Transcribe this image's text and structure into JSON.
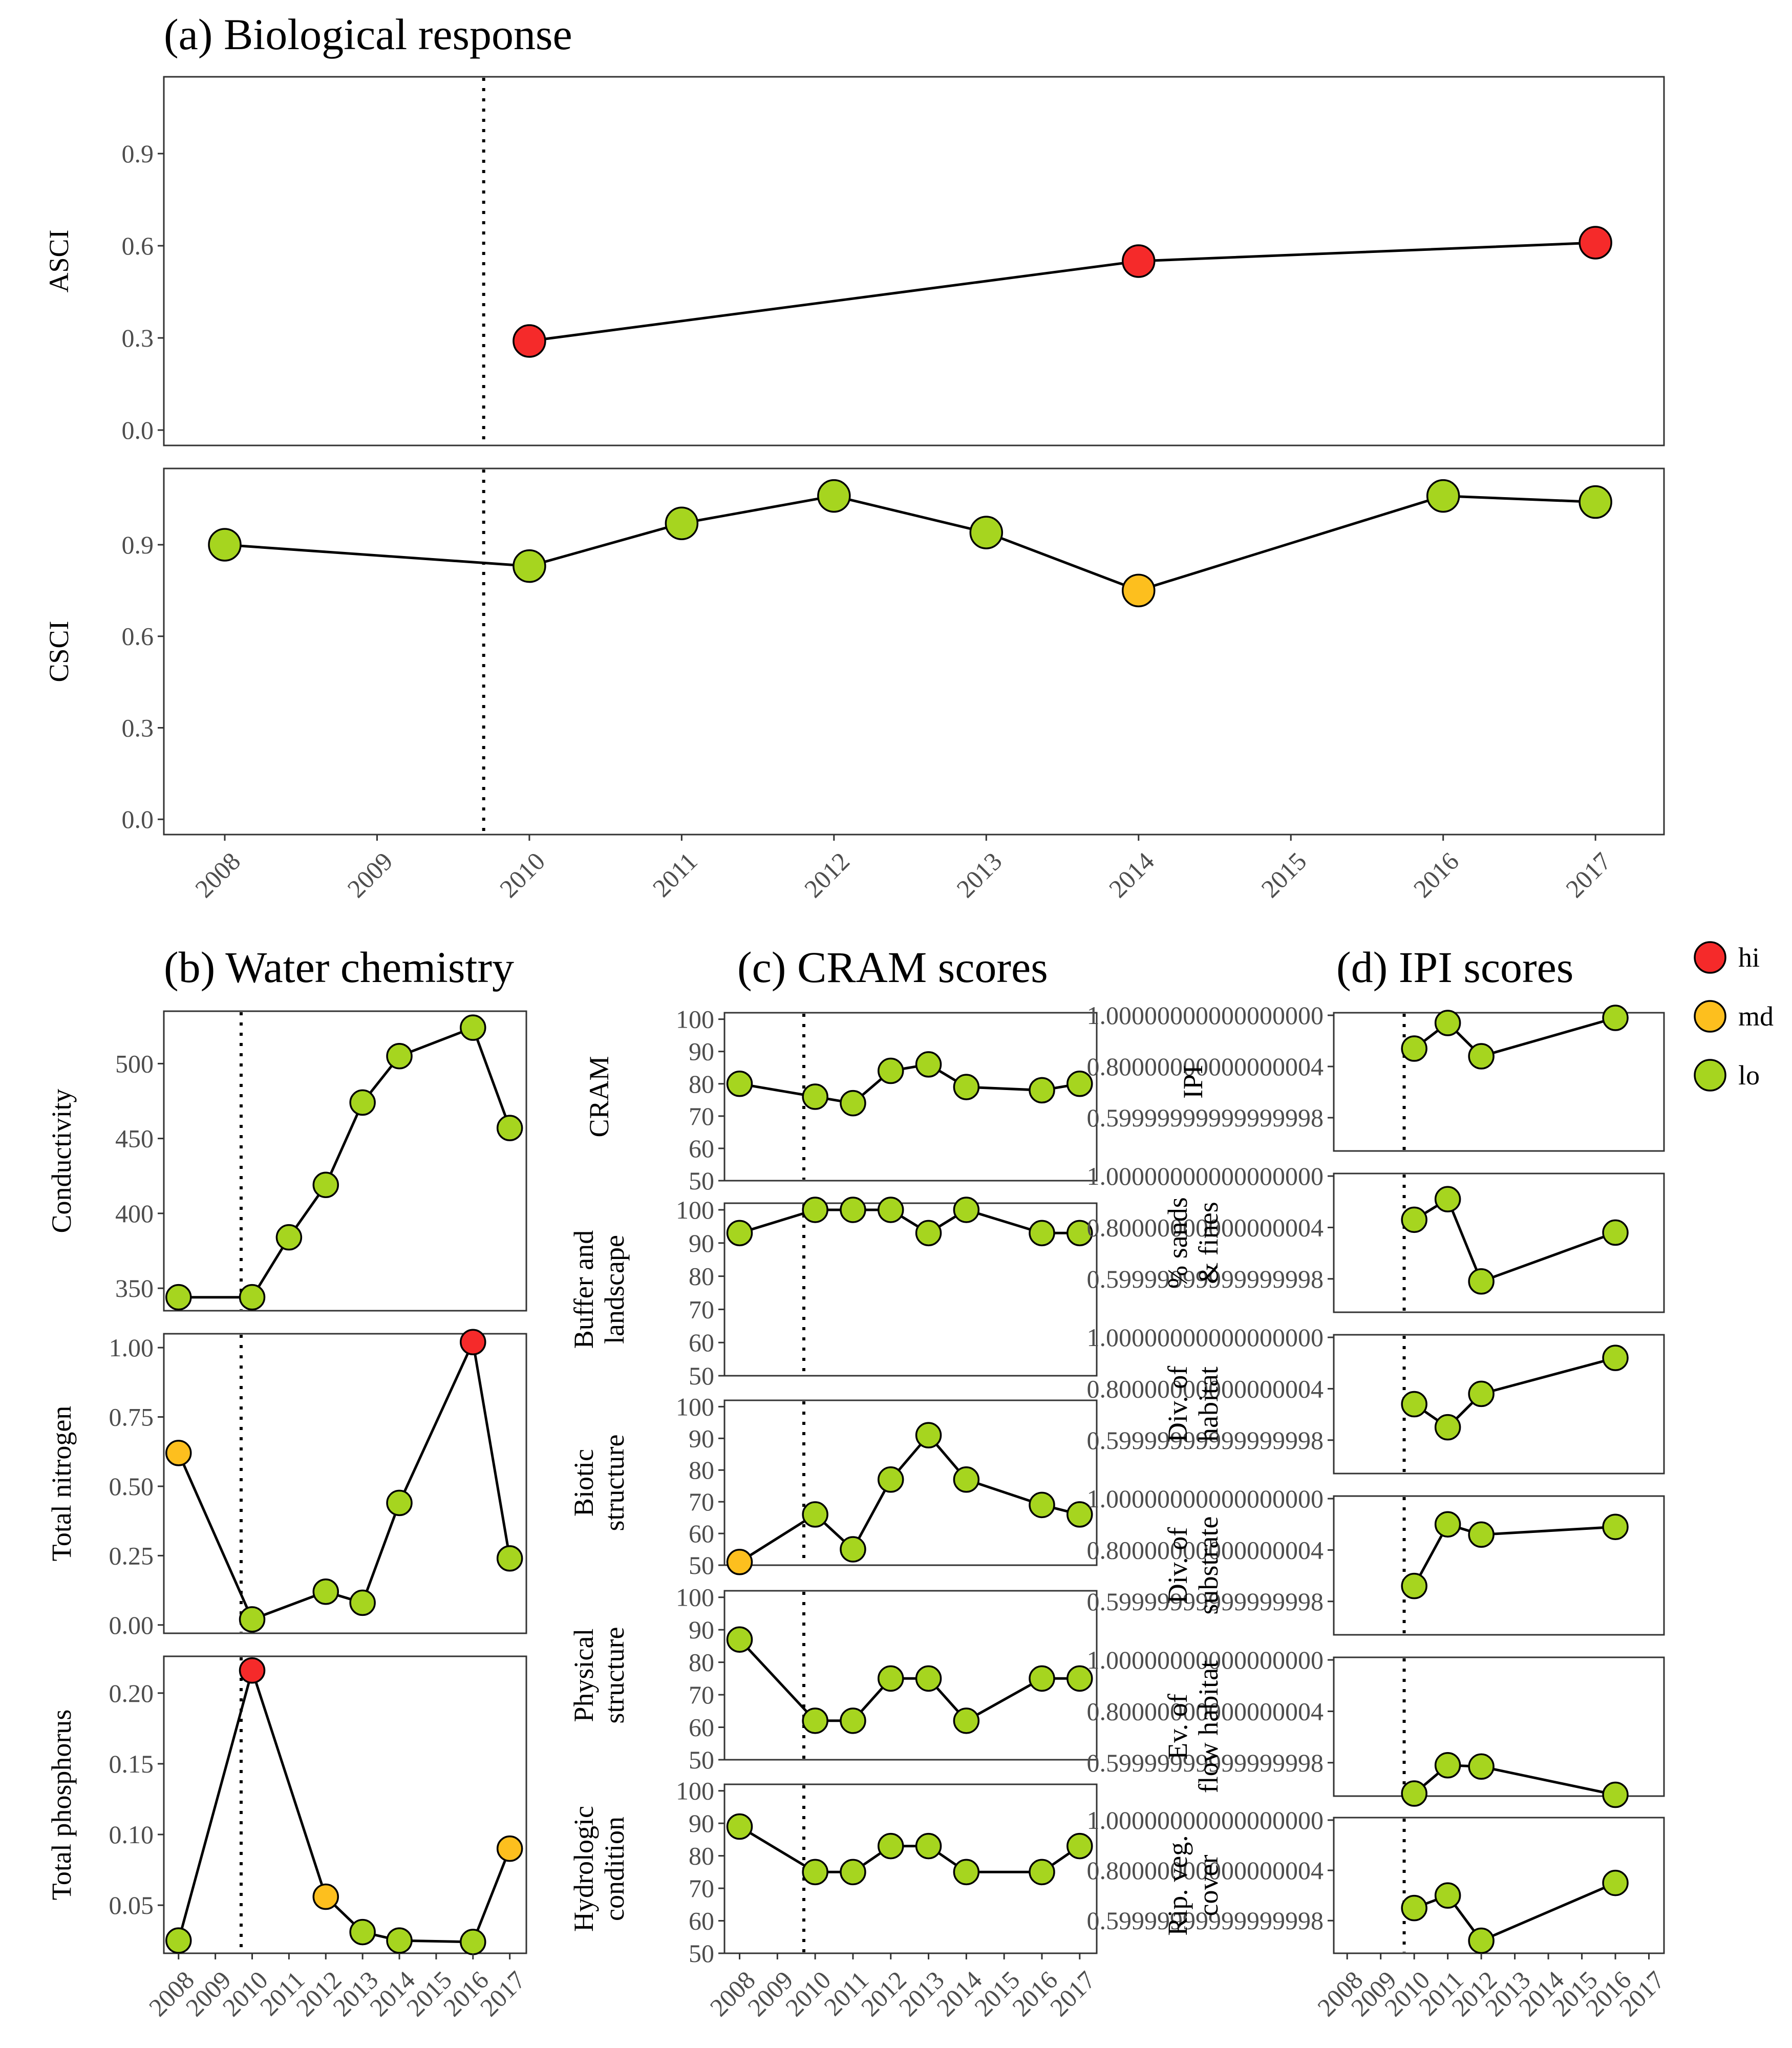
{
  "colors": {
    "hi": "#f52a2a",
    "md": "#fdbf1e",
    "lo": "#a6d51f"
  },
  "legend": [
    {
      "key": "hi",
      "label": "hi"
    },
    {
      "key": "md",
      "label": "md"
    },
    {
      "key": "lo",
      "label": "lo"
    }
  ],
  "chart_data": [
    {
      "type": "line",
      "title": "(a) Biological response",
      "x_ticks": [
        "2008",
        "2009",
        "2010",
        "2011",
        "2012",
        "2013",
        "2014",
        "2015",
        "2016",
        "2017"
      ],
      "xlim": [
        2007.6,
        2017.45
      ],
      "vline_x": 2009.7,
      "panels": [
        {
          "ylabel": "ASCI",
          "ylim": [
            -0.05,
            1.15
          ],
          "yticks": [
            0.0,
            0.3,
            0.6,
            0.9
          ],
          "points": [
            {
              "x": 2010,
              "y": 0.29,
              "cat": "hi"
            },
            {
              "x": 2014,
              "y": 0.55,
              "cat": "hi"
            },
            {
              "x": 2017,
              "y": 0.61,
              "cat": "hi"
            }
          ]
        },
        {
          "ylabel": "CSCI",
          "ylim": [
            -0.05,
            1.15
          ],
          "yticks": [
            0.0,
            0.3,
            0.6,
            0.9
          ],
          "points": [
            {
              "x": 2008,
              "y": 0.9,
              "cat": "lo"
            },
            {
              "x": 2010,
              "y": 0.83,
              "cat": "lo"
            },
            {
              "x": 2011,
              "y": 0.97,
              "cat": "lo"
            },
            {
              "x": 2012,
              "y": 1.06,
              "cat": "lo"
            },
            {
              "x": 2013,
              "y": 0.94,
              "cat": "lo"
            },
            {
              "x": 2014,
              "y": 0.75,
              "cat": "md"
            },
            {
              "x": 2016,
              "y": 1.06,
              "cat": "lo"
            },
            {
              "x": 2017,
              "y": 1.04,
              "cat": "lo"
            }
          ]
        }
      ]
    },
    {
      "type": "line",
      "title": "(b) Water chemistry",
      "x_ticks": [
        "2008",
        "2009",
        "2010",
        "2011",
        "2012",
        "2013",
        "2014",
        "2015",
        "2016",
        "2017"
      ],
      "xlim": [
        2007.6,
        2017.45
      ],
      "vline_x": 2009.7,
      "panels": [
        {
          "ylabel": "Conductivity",
          "ylim": [
            335,
            535
          ],
          "yticks": [
            350,
            400,
            450,
            500
          ],
          "points": [
            {
              "x": 2008,
              "y": 344,
              "cat": "lo"
            },
            {
              "x": 2010,
              "y": 344,
              "cat": "lo"
            },
            {
              "x": 2011,
              "y": 384,
              "cat": "lo"
            },
            {
              "x": 2012,
              "y": 419,
              "cat": "lo"
            },
            {
              "x": 2013,
              "y": 474,
              "cat": "lo"
            },
            {
              "x": 2014,
              "y": 505,
              "cat": "lo"
            },
            {
              "x": 2016,
              "y": 524,
              "cat": "lo"
            },
            {
              "x": 2017,
              "y": 457,
              "cat": "lo"
            }
          ]
        },
        {
          "ylabel": "Total nitrogen",
          "ylim": [
            -0.03,
            1.05
          ],
          "yticks": [
            0.0,
            0.25,
            0.5,
            0.75,
            1.0
          ],
          "points": [
            {
              "x": 2008,
              "y": 0.62,
              "cat": "md"
            },
            {
              "x": 2010,
              "y": 0.02,
              "cat": "lo"
            },
            {
              "x": 2012,
              "y": 0.12,
              "cat": "lo"
            },
            {
              "x": 2013,
              "y": 0.08,
              "cat": "lo"
            },
            {
              "x": 2014,
              "y": 0.44,
              "cat": "lo"
            },
            {
              "x": 2016,
              "y": 1.02,
              "cat": "hi"
            },
            {
              "x": 2017,
              "y": 0.24,
              "cat": "lo"
            }
          ]
        },
        {
          "ylabel": "Total phosphorus",
          "ylim": [
            0.016,
            0.226
          ],
          "yticks": [
            0.05,
            0.1,
            0.15,
            0.2
          ],
          "points": [
            {
              "x": 2008,
              "y": 0.025,
              "cat": "lo"
            },
            {
              "x": 2010,
              "y": 0.216,
              "cat": "hi"
            },
            {
              "x": 2012,
              "y": 0.056,
              "cat": "md"
            },
            {
              "x": 2013,
              "y": 0.031,
              "cat": "lo"
            },
            {
              "x": 2014,
              "y": 0.025,
              "cat": "lo"
            },
            {
              "x": 2016,
              "y": 0.024,
              "cat": "lo"
            },
            {
              "x": 2017,
              "y": 0.09,
              "cat": "md"
            }
          ]
        }
      ]
    },
    {
      "type": "line",
      "title": "(c) CRAM scores",
      "x_ticks": [
        "2008",
        "2009",
        "2010",
        "2011",
        "2012",
        "2013",
        "2014",
        "2015",
        "2016",
        "2017"
      ],
      "xlim": [
        2007.6,
        2017.45
      ],
      "vline_x": 2009.7,
      "panels": [
        {
          "ylabel": [
            "CRAM"
          ],
          "ylim": [
            50,
            102
          ],
          "yticks": [
            50,
            60,
            70,
            80,
            90,
            100
          ],
          "points": [
            {
              "x": 2008,
              "y": 80,
              "cat": "lo"
            },
            {
              "x": 2010,
              "y": 76,
              "cat": "lo"
            },
            {
              "x": 2011,
              "y": 74,
              "cat": "lo"
            },
            {
              "x": 2012,
              "y": 84,
              "cat": "lo"
            },
            {
              "x": 2013,
              "y": 86,
              "cat": "lo"
            },
            {
              "x": 2014,
              "y": 79,
              "cat": "lo"
            },
            {
              "x": 2016,
              "y": 78,
              "cat": "lo"
            },
            {
              "x": 2017,
              "y": 80,
              "cat": "lo"
            }
          ]
        },
        {
          "ylabel": [
            "Buffer and",
            "landscape"
          ],
          "ylim": [
            50,
            102
          ],
          "yticks": [
            50,
            60,
            70,
            80,
            90,
            100
          ],
          "points": [
            {
              "x": 2008,
              "y": 93,
              "cat": "lo"
            },
            {
              "x": 2010,
              "y": 100,
              "cat": "lo"
            },
            {
              "x": 2011,
              "y": 100,
              "cat": "lo"
            },
            {
              "x": 2012,
              "y": 100,
              "cat": "lo"
            },
            {
              "x": 2013,
              "y": 93,
              "cat": "lo"
            },
            {
              "x": 2014,
              "y": 100,
              "cat": "lo"
            },
            {
              "x": 2016,
              "y": 93,
              "cat": "lo"
            },
            {
              "x": 2017,
              "y": 93,
              "cat": "lo"
            }
          ]
        },
        {
          "ylabel": [
            "Biotic",
            "structure"
          ],
          "ylim": [
            50,
            102
          ],
          "yticks": [
            50,
            60,
            70,
            80,
            90,
            100
          ],
          "points": [
            {
              "x": 2008,
              "y": 51,
              "cat": "md"
            },
            {
              "x": 2010,
              "y": 66,
              "cat": "lo"
            },
            {
              "x": 2011,
              "y": 55,
              "cat": "lo"
            },
            {
              "x": 2012,
              "y": 77,
              "cat": "lo"
            },
            {
              "x": 2013,
              "y": 91,
              "cat": "lo"
            },
            {
              "x": 2014,
              "y": 77,
              "cat": "lo"
            },
            {
              "x": 2016,
              "y": 69,
              "cat": "lo"
            },
            {
              "x": 2017,
              "y": 66,
              "cat": "lo"
            }
          ]
        },
        {
          "ylabel": [
            "Physical",
            "structure"
          ],
          "ylim": [
            50,
            102
          ],
          "yticks": [
            50,
            60,
            70,
            80,
            90,
            100
          ],
          "points": [
            {
              "x": 2008,
              "y": 87,
              "cat": "lo"
            },
            {
              "x": 2010,
              "y": 62,
              "cat": "lo"
            },
            {
              "x": 2011,
              "y": 62,
              "cat": "lo"
            },
            {
              "x": 2012,
              "y": 75,
              "cat": "lo"
            },
            {
              "x": 2013,
              "y": 75,
              "cat": "lo"
            },
            {
              "x": 2014,
              "y": 62,
              "cat": "lo"
            },
            {
              "x": 2016,
              "y": 75,
              "cat": "lo"
            },
            {
              "x": 2017,
              "y": 75,
              "cat": "lo"
            }
          ]
        },
        {
          "ylabel": [
            "Hydrologic",
            "condition"
          ],
          "ylim": [
            50,
            102
          ],
          "yticks": [
            50,
            60,
            70,
            80,
            90,
            100
          ],
          "points": [
            {
              "x": 2008,
              "y": 89,
              "cat": "lo"
            },
            {
              "x": 2010,
              "y": 75,
              "cat": "lo"
            },
            {
              "x": 2011,
              "y": 75,
              "cat": "lo"
            },
            {
              "x": 2012,
              "y": 83,
              "cat": "lo"
            },
            {
              "x": 2013,
              "y": 83,
              "cat": "lo"
            },
            {
              "x": 2014,
              "y": 75,
              "cat": "lo"
            },
            {
              "x": 2016,
              "y": 75,
              "cat": "lo"
            },
            {
              "x": 2017,
              "y": 83,
              "cat": "lo"
            }
          ]
        }
      ]
    },
    {
      "type": "line",
      "title": "(d) IPI scores",
      "x_ticks": [
        "2008",
        "2009",
        "2010",
        "2011",
        "2012",
        "2013",
        "2014",
        "2015",
        "2016",
        "2017"
      ],
      "xlim": [
        2007.6,
        2017.45
      ],
      "vline_x": 2009.7,
      "panels": [
        {
          "ylabel": [
            "IPI"
          ],
          "ylim": [
            0.47,
            1.01
          ],
          "yticks": [
            0.6,
            0.8,
            1.0
          ],
          "points": [
            {
              "x": 2010,
              "y": 0.87,
              "cat": "lo"
            },
            {
              "x": 2011,
              "y": 0.97,
              "cat": "lo"
            },
            {
              "x": 2012,
              "y": 0.84,
              "cat": "lo"
            },
            {
              "x": 2016,
              "y": 0.99,
              "cat": "lo"
            }
          ]
        },
        {
          "ylabel": [
            "% sands",
            "& fines"
          ],
          "ylim": [
            0.47,
            1.01
          ],
          "yticks": [
            0.6,
            0.8,
            1.0
          ],
          "points": [
            {
              "x": 2010,
              "y": 0.83,
              "cat": "lo"
            },
            {
              "x": 2011,
              "y": 0.91,
              "cat": "lo"
            },
            {
              "x": 2012,
              "y": 0.59,
              "cat": "lo"
            },
            {
              "x": 2016,
              "y": 0.78,
              "cat": "lo"
            }
          ]
        },
        {
          "ylabel": [
            "Div. of",
            "habitat"
          ],
          "ylim": [
            0.47,
            1.01
          ],
          "yticks": [
            0.6,
            0.8,
            1.0
          ],
          "points": [
            {
              "x": 2010,
              "y": 0.74,
              "cat": "lo"
            },
            {
              "x": 2011,
              "y": 0.65,
              "cat": "lo"
            },
            {
              "x": 2012,
              "y": 0.78,
              "cat": "lo"
            },
            {
              "x": 2016,
              "y": 0.92,
              "cat": "lo"
            }
          ]
        },
        {
          "ylabel": [
            "Div. of",
            "substrate"
          ],
          "ylim": [
            0.47,
            1.01
          ],
          "yticks": [
            0.6,
            0.8,
            1.0
          ],
          "points": [
            {
              "x": 2010,
              "y": 0.66,
              "cat": "lo"
            },
            {
              "x": 2011,
              "y": 0.9,
              "cat": "lo"
            },
            {
              "x": 2012,
              "y": 0.86,
              "cat": "lo"
            },
            {
              "x": 2016,
              "y": 0.89,
              "cat": "lo"
            }
          ]
        },
        {
          "ylabel": [
            "Ev. of",
            "flow habitat"
          ],
          "ylim": [
            0.47,
            1.01
          ],
          "yticks": [
            0.6,
            0.8,
            1.0
          ],
          "points": [
            {
              "x": 2010,
              "y": 0.48,
              "cat": "lo"
            },
            {
              "x": 2011,
              "y": 0.59,
              "cat": "lo"
            },
            {
              "x": 2012,
              "y": 0.585,
              "cat": "lo"
            },
            {
              "x": 2016,
              "y": 0.475,
              "cat": "lo"
            }
          ]
        },
        {
          "ylabel": [
            "Rip. veg.",
            "cover"
          ],
          "ylim": [
            0.47,
            1.01
          ],
          "yticks": [
            0.6,
            0.8,
            1.0
          ],
          "points": [
            {
              "x": 2010,
              "y": 0.65,
              "cat": "lo"
            },
            {
              "x": 2011,
              "y": 0.7,
              "cat": "lo"
            },
            {
              "x": 2012,
              "y": 0.52,
              "cat": "lo"
            },
            {
              "x": 2016,
              "y": 0.75,
              "cat": "lo"
            }
          ]
        }
      ]
    }
  ]
}
